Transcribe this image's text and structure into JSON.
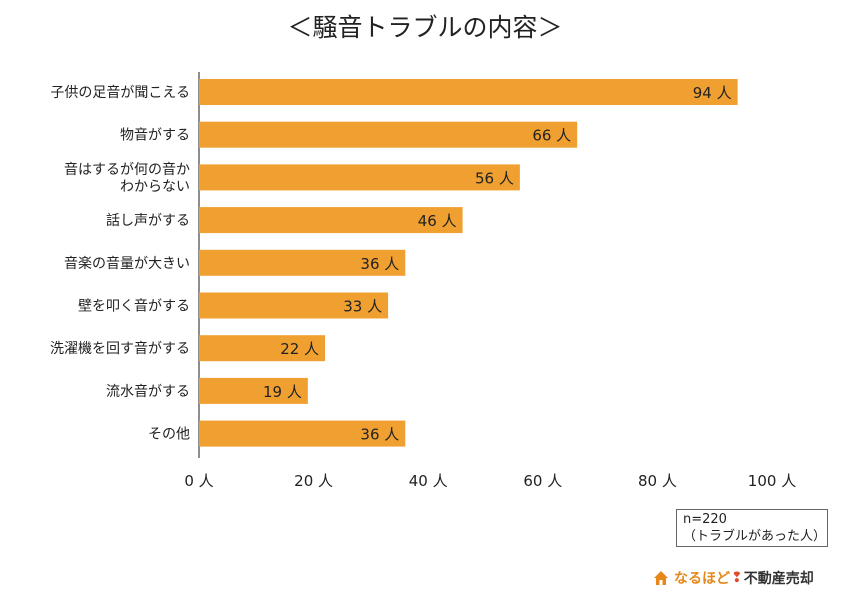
{
  "chart_data": {
    "type": "bar",
    "orientation": "horizontal",
    "title": "＜騒音トラブルの内容＞",
    "categories": [
      "子供の足音が聞こえる",
      "物音がする",
      "音はするが何の音か\nわからない",
      "話し声がする",
      "音楽の音量が大きい",
      "壁を叩く音がする",
      "洗濯機を回す音がする",
      "流水音がする",
      "その他"
    ],
    "values": [
      94,
      66,
      56,
      46,
      36,
      33,
      22,
      19,
      36
    ],
    "value_unit": "人",
    "xlim": [
      0,
      100
    ],
    "x_ticks": [
      0,
      20,
      40,
      60,
      80,
      100
    ],
    "x_tick_labels": [
      "0 人",
      "20 人",
      "40 人",
      "60 人",
      "80 人",
      "100 人"
    ],
    "bar_color": "#f0a030",
    "grid": false
  },
  "note": {
    "line1": "n=220",
    "line2": "（トラブルがあった人）"
  },
  "brand": {
    "part1": "なるほど",
    "mark": "❢",
    "part2": "不動産売却"
  }
}
